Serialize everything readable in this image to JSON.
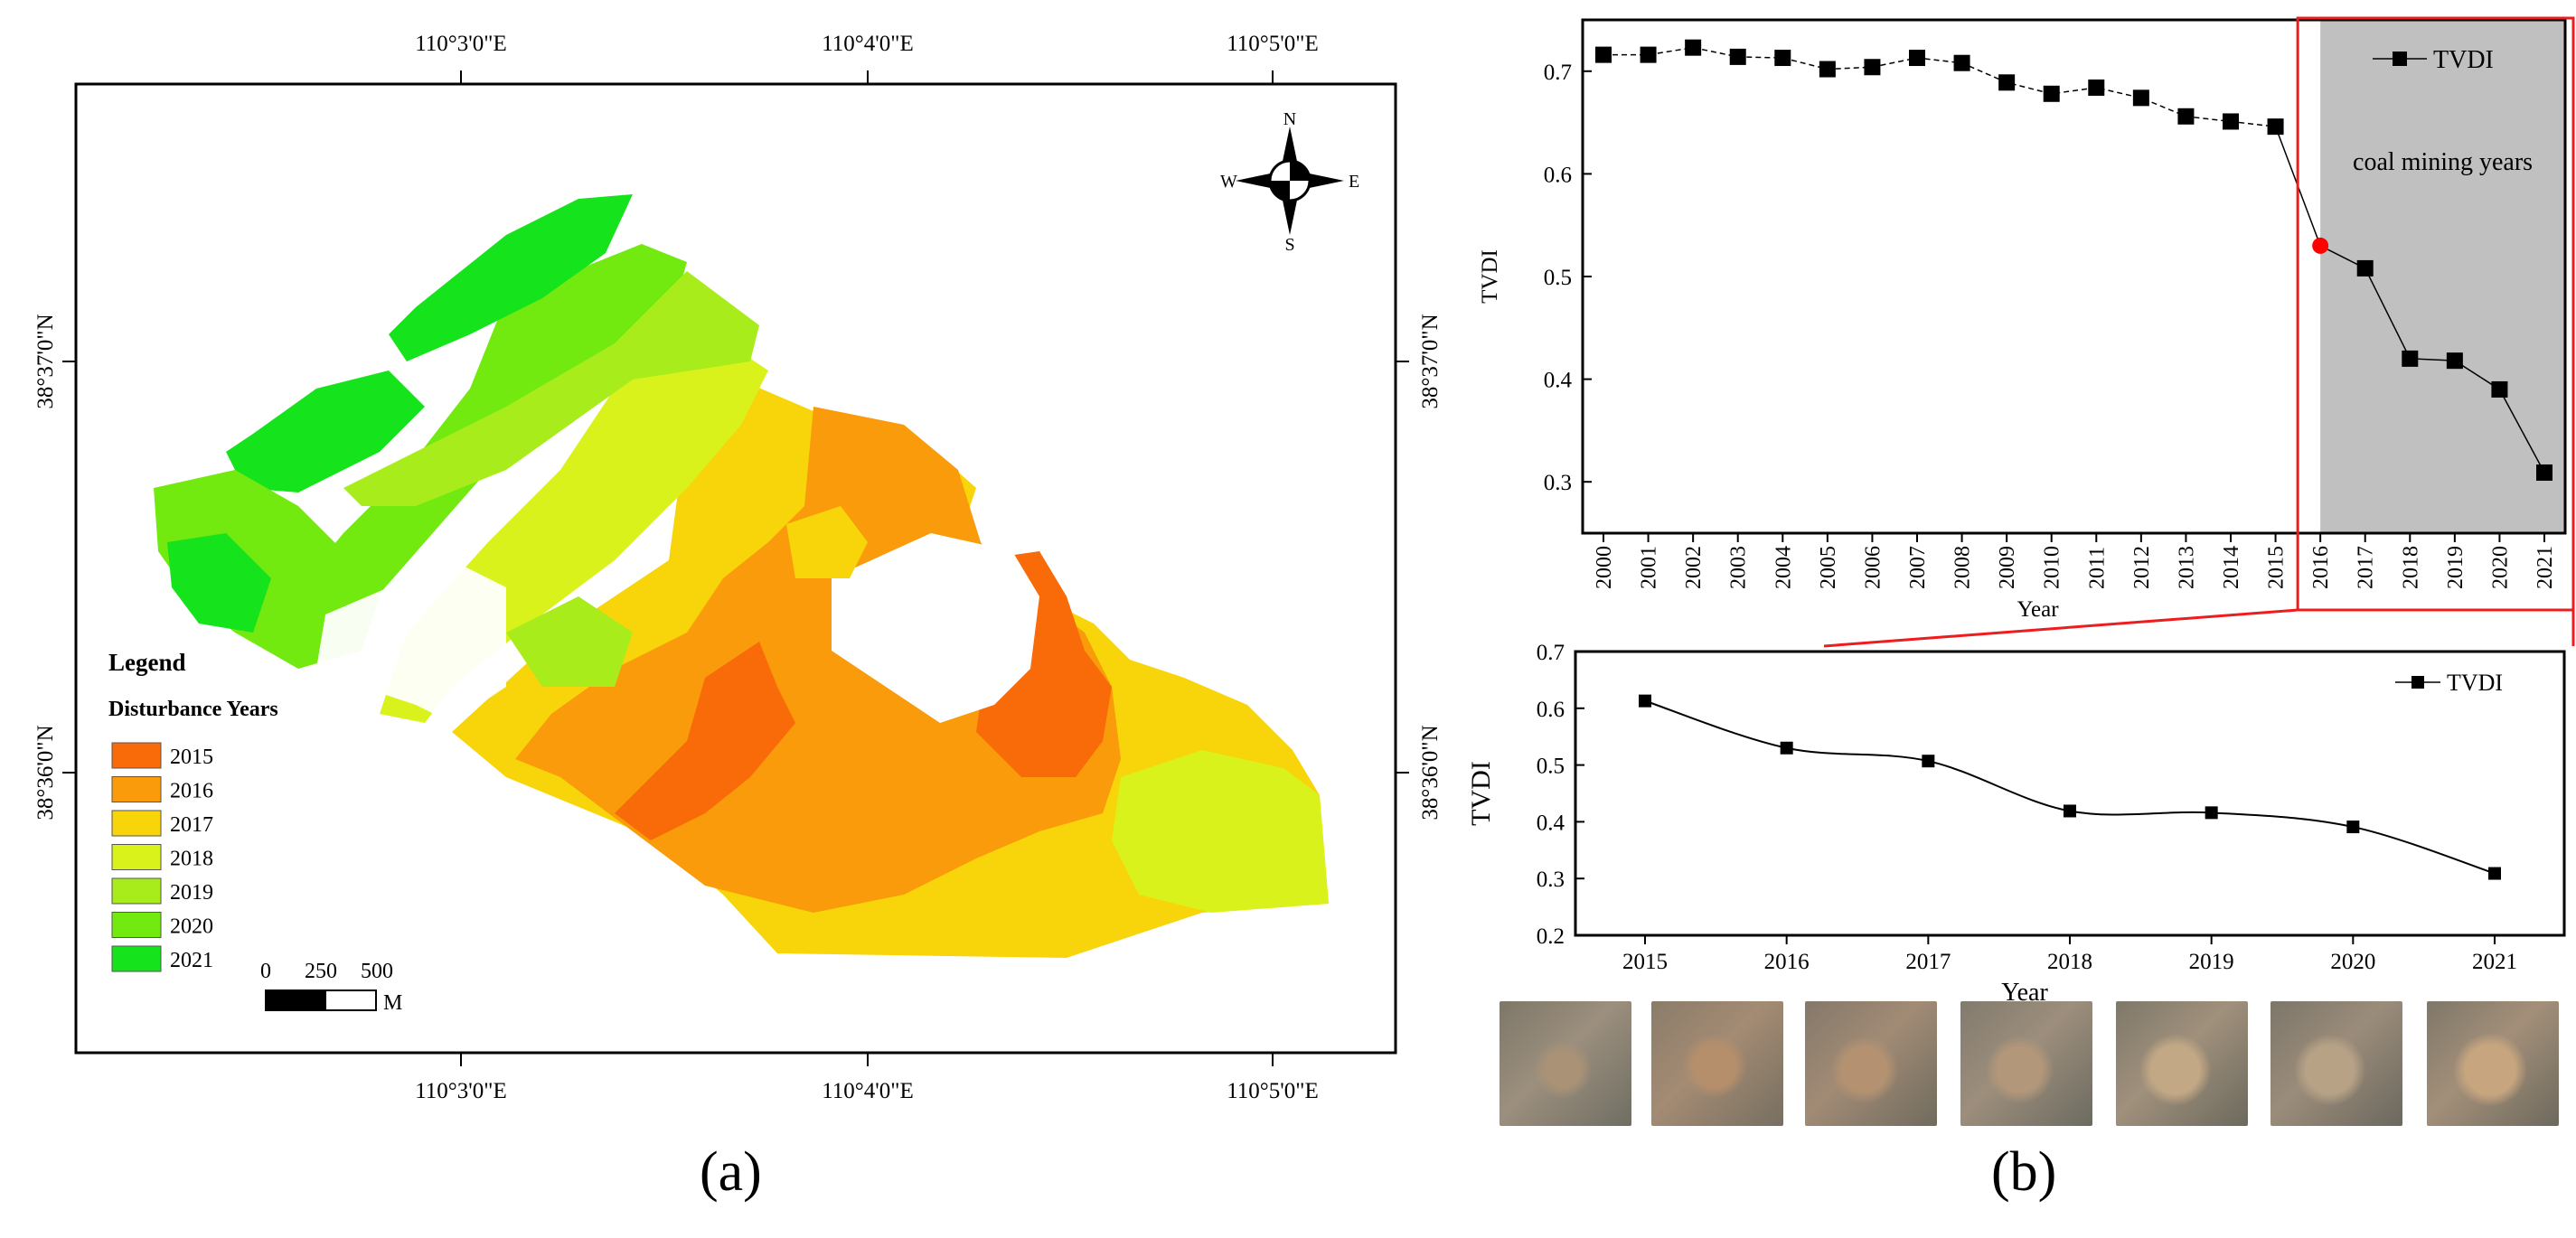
{
  "map": {
    "lon_labels": [
      "110°3'0\"E",
      "110°4'0\"E",
      "110°5'0\"E"
    ],
    "lat_labels": [
      "38°37'0\"N",
      "38°36'0\"N"
    ],
    "compass": {
      "n": "N",
      "s": "S",
      "e": "E",
      "w": "W"
    },
    "legend": {
      "title": "Legend",
      "subtitle": "Disturbance Years",
      "items": [
        {
          "year": "2015",
          "color": "#f96a08"
        },
        {
          "year": "2016",
          "color": "#f99b0a"
        },
        {
          "year": "2017",
          "color": "#f7d50a"
        },
        {
          "year": "2018",
          "color": "#d9f21b"
        },
        {
          "year": "2019",
          "color": "#a8ec1c"
        },
        {
          "year": "2020",
          "color": "#72ea10"
        },
        {
          "year": "2021",
          "color": "#15e31b"
        }
      ]
    },
    "scalebar": {
      "ticks": [
        "0",
        "250",
        "500"
      ],
      "unit": "M"
    }
  },
  "panel_labels": {
    "a": "(a)",
    "b": "(b)"
  },
  "chart_data": [
    {
      "type": "line",
      "title": "",
      "xlabel": "Year",
      "ylabel": "TVDI",
      "ylim": [
        0.25,
        0.75
      ],
      "yticks": [
        "0.3",
        "0.4",
        "0.5",
        "0.6",
        "0.7"
      ],
      "x": [
        "2000",
        "2001",
        "2002",
        "2003",
        "2004",
        "2005",
        "2006",
        "2007",
        "2008",
        "2009",
        "2010",
        "2011",
        "2012",
        "2013",
        "2014",
        "2015",
        "2016",
        "2017",
        "2018",
        "2019",
        "2020",
        "2021"
      ],
      "series": [
        {
          "name": "TVDI",
          "values": [
            0.716,
            0.716,
            0.723,
            0.714,
            0.713,
            0.702,
            0.704,
            0.713,
            0.708,
            0.689,
            0.678,
            0.684,
            0.674,
            0.656,
            0.651,
            0.646,
            0.53,
            0.508,
            0.42,
            0.418,
            0.39,
            0.309
          ]
        }
      ],
      "highlight": {
        "label": "coal mining years",
        "from": "2016",
        "to": "2021",
        "point": "2016",
        "point_color": "#ff0000"
      },
      "legend": "top-right"
    },
    {
      "type": "line",
      "title": "",
      "xlabel": "Year",
      "ylabel": "TVDI",
      "ylim": [
        0.2,
        0.7
      ],
      "yticks": [
        "0.2",
        "0.3",
        "0.4",
        "0.5",
        "0.6",
        "0.7"
      ],
      "x": [
        "2015",
        "2016",
        "2017",
        "2018",
        "2019",
        "2020",
        "2021"
      ],
      "series": [
        {
          "name": "TVDI",
          "values": [
            0.613,
            0.53,
            0.507,
            0.419,
            0.416,
            0.391,
            0.309
          ]
        }
      ],
      "smooth": true,
      "legend": "top-right"
    }
  ]
}
